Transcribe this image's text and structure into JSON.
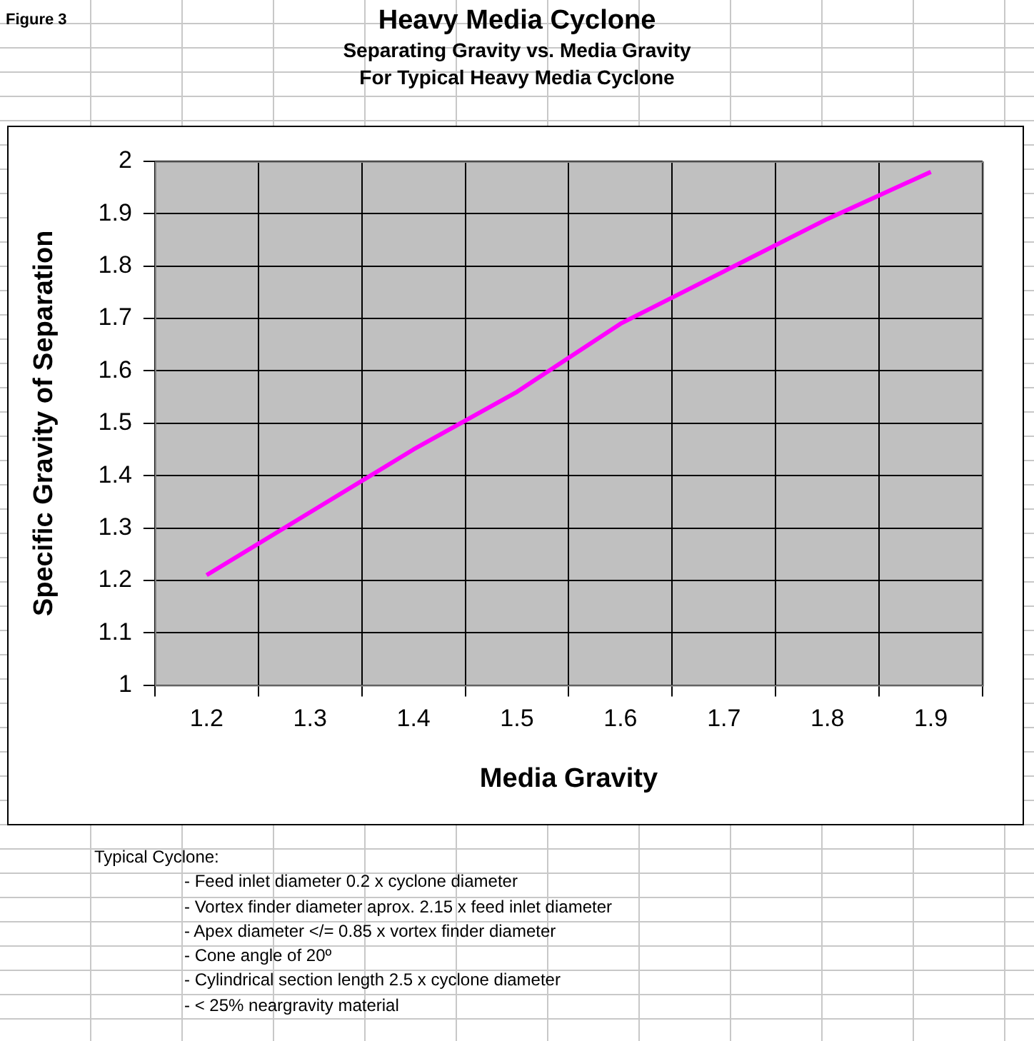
{
  "chart_data": {
    "type": "line",
    "title": "Heavy Media Cyclone",
    "subtitle": "Separating Gravity vs. Media Gravity\nFor Typical Heavy Media Cyclone",
    "xlabel": "Media Gravity",
    "ylabel": "Specific Gravity of Separation",
    "categories": [
      "1.2",
      "1.3",
      "1.4",
      "1.5",
      "1.6",
      "1.7",
      "1.8",
      "1.9"
    ],
    "series": [
      {
        "color": "#ff00ff",
        "values": [
          1.21,
          1.33,
          1.45,
          1.56,
          1.69,
          1.79,
          1.89,
          1.98
        ]
      }
    ],
    "ylim": [
      1,
      2
    ],
    "yticks": [
      1,
      1.1,
      1.2,
      1.3,
      1.4,
      1.5,
      1.6,
      1.7,
      1.8,
      1.9,
      2
    ],
    "grid": true,
    "legend": false,
    "marker": "none",
    "line_style": "solid",
    "annotations": [
      "Figure 3",
      "Typical Cyclone:",
      "- Feed inlet diameter 0.2  x cyclone diameter",
      "- Vortex finder diameter aprox. 2.15 x feed inlet diameter",
      "- Apex diameter </= 0.85 x vortex finder diameter",
      "- Cone angle of 20º",
      "- Cylindrical section length 2.5 x cyclone diameter",
      "- < 25% neargravity material"
    ]
  }
}
